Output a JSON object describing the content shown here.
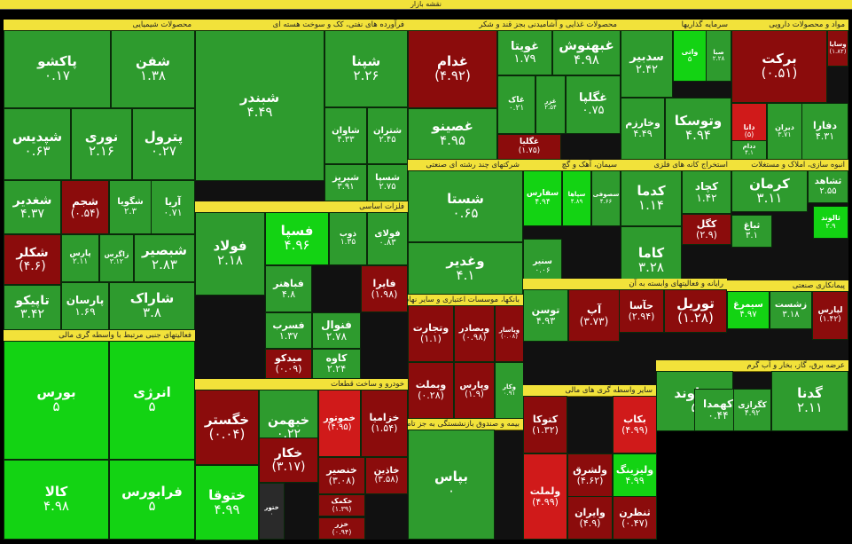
{
  "page": {
    "title": "نقشه بازار"
  },
  "colors": {
    "dark_green": "#1d7a1d",
    "green": "#2e9b2e",
    "bright_green": "#13d313",
    "light_green": "#22c022",
    "dark_red": "#8b0c0c",
    "red": "#d01a1a",
    "bright_red": "#ff2222",
    "neutral": "#2a2a2a",
    "header": "#f2e23a"
  },
  "sectors": [
    {
      "id": "chemical",
      "label": "محصولات شیمیایی",
      "tiles": [
        {
          "name": "پاکشو",
          "value": "۰.۱۷",
          "tone": "green"
        },
        {
          "name": "شفن",
          "value": "۱.۳۸",
          "tone": "green"
        },
        {
          "name": "شپدیس",
          "value": "۰.۶۳",
          "tone": "green"
        },
        {
          "name": "نوری",
          "value": "۲.۱۶",
          "tone": "green"
        },
        {
          "name": "پترول",
          "value": "۰.۲۷",
          "tone": "green"
        },
        {
          "name": "شغدیر",
          "value": "۴.۳۷",
          "tone": "green"
        },
        {
          "name": "شجم",
          "value": "(۰.۵۴)",
          "tone": "dark_red"
        },
        {
          "name": "شگویا",
          "value": "۲.۳",
          "tone": "green"
        },
        {
          "name": "آریا",
          "value": "۰.۷۱",
          "tone": "green"
        },
        {
          "name": "شکلر",
          "value": "(۴.۶)",
          "tone": "dark_red"
        },
        {
          "name": "پارس",
          "value": "۲.۱۱",
          "tone": "green"
        },
        {
          "name": "زاگرس",
          "value": "۳.۱۲",
          "tone": "green"
        },
        {
          "name": "شبصیر",
          "value": "۲.۸۳",
          "tone": "green"
        },
        {
          "name": "تاپیکو",
          "value": "۳.۴۲",
          "tone": "green"
        },
        {
          "name": "پارسان",
          "value": "۱.۶۹",
          "tone": "green"
        },
        {
          "name": "شاراک",
          "value": "۳.۸",
          "tone": "green"
        }
      ]
    },
    {
      "id": "petroleum",
      "label": "فرآورده های نفتی، کک و سوخت هسته ای",
      "tiles": [
        {
          "name": "شبندر",
          "value": "۴.۴۹",
          "tone": "green"
        },
        {
          "name": "شپنا",
          "value": "۲.۲۶",
          "tone": "green"
        },
        {
          "name": "شاوان",
          "value": "۴.۳۳",
          "tone": "green"
        },
        {
          "name": "شتران",
          "value": "۲.۴۵",
          "tone": "green"
        },
        {
          "name": "شبریز",
          "value": "۳.۹۱",
          "tone": "green"
        },
        {
          "name": "شسپا",
          "value": "۲.۷۵",
          "tone": "green"
        }
      ]
    },
    {
      "id": "food",
      "label": "محصولات غذایی و آشامیدنی بجز قند و شکر",
      "tiles": [
        {
          "name": "غدام",
          "value": "(۴.۹۲)",
          "tone": "dark_red"
        },
        {
          "name": "غویتا",
          "value": "۱.۷۹",
          "tone": "green"
        },
        {
          "name": "غبهنوش",
          "value": "۴.۹۸",
          "tone": "green"
        },
        {
          "name": "غاک",
          "value": "۰.۲۱",
          "tone": "green"
        },
        {
          "name": "غزر",
          "value": "۲.۵۴",
          "tone": "green"
        },
        {
          "name": "غگلپا",
          "value": "۰.۷۵",
          "tone": "green"
        },
        {
          "name": "غصینو",
          "value": "۴.۹۵",
          "tone": "green"
        },
        {
          "name": "غگلیا",
          "value": "(۱.۷۵)",
          "tone": "dark_red"
        }
      ]
    },
    {
      "id": "investment",
      "label": "سرمایه گذاریها",
      "tiles": [
        {
          "name": "سدبیر",
          "value": "۲.۴۲",
          "tone": "green"
        },
        {
          "name": "واتی",
          "value": "۵",
          "tone": "bright_green"
        },
        {
          "name": "صبا",
          "value": "۲.۲۸",
          "tone": "green"
        },
        {
          "name": "وخارزم",
          "value": "۴.۴۹",
          "tone": "green"
        },
        {
          "name": "وتوسکا",
          "value": "۴.۹۴",
          "tone": "green"
        }
      ]
    },
    {
      "id": "pharma",
      "label": "مواد و محصولات دارویی",
      "tiles": [
        {
          "name": "وسایا",
          "value": "(۱.۸۲)",
          "tone": "dark_red"
        },
        {
          "name": "برکت",
          "value": "(۰.۵۱)",
          "tone": "dark_red"
        },
        {
          "name": "دانا",
          "value": "(۵)",
          "tone": "red"
        },
        {
          "name": "دیران",
          "value": "۳.۷۱",
          "tone": "green"
        },
        {
          "name": "دفارا",
          "value": "۴.۳۱",
          "tone": "green"
        },
        {
          "name": "ددام",
          "value": "۴.۱",
          "tone": "green"
        }
      ]
    },
    {
      "id": "multi",
      "label": "شرکتهای چند رشته ای صنعتی",
      "tiles": [
        {
          "name": "شستا",
          "value": "۰.۶۵",
          "tone": "green"
        },
        {
          "name": "وغدیر",
          "value": "۴.۱",
          "tone": "green"
        }
      ]
    },
    {
      "id": "cement",
      "label": "سیمان، آهک و گچ",
      "tiles": [
        {
          "name": "سفارس",
          "value": "۴.۹۴",
          "tone": "bright_green"
        },
        {
          "name": "سپاها",
          "value": "۴.۸۹",
          "tone": "bright_green"
        },
        {
          "name": "سصوفی",
          "value": "۴.۶۶",
          "tone": "green"
        },
        {
          "name": "سنیر",
          "value": "۰.۰۶",
          "tone": "green"
        }
      ]
    },
    {
      "id": "mining",
      "label": "استخراج کانه های فلزی",
      "tiles": [
        {
          "name": "کدما",
          "value": "۱.۱۴",
          "tone": "green"
        },
        {
          "name": "کچاد",
          "value": "۱.۴۲",
          "tone": "green"
        },
        {
          "name": "کگل",
          "value": "(۲.۹)",
          "tone": "dark_red"
        },
        {
          "name": "کاما",
          "value": "۳.۲۸",
          "tone": "green"
        }
      ]
    },
    {
      "id": "realestate",
      "label": "انبوه سازی، املاک و مستغلات",
      "tiles": [
        {
          "name": "ثشاهد",
          "value": "۲.۵۵",
          "tone": "green"
        },
        {
          "name": "کرمان",
          "value": "۳.۱۱",
          "tone": "green"
        },
        {
          "name": "ثالوند",
          "value": "۲.۹",
          "tone": "bright_green"
        },
        {
          "name": "ثباغ",
          "value": "۳.۱",
          "tone": "green"
        }
      ]
    },
    {
      "id": "basemetals",
      "label": "فلزات اساسی",
      "tiles": [
        {
          "name": "فولاد",
          "value": "۲.۱۸",
          "tone": "green"
        },
        {
          "name": "فسپا",
          "value": "۴.۹۶",
          "tone": "bright_green"
        },
        {
          "name": "ذوب",
          "value": "۱.۳۵",
          "tone": "green"
        },
        {
          "name": "فولای",
          "value": "۰.۸۳",
          "tone": "green"
        },
        {
          "name": "فباهنر",
          "value": "۴.۸",
          "tone": "green"
        },
        {
          "name": "فایرا",
          "value": "(۱.۹۸)",
          "tone": "dark_red"
        },
        {
          "name": "فسرب",
          "value": "۱.۳۷",
          "tone": "green"
        },
        {
          "name": "فنوال",
          "value": "۲.۷۸",
          "tone": "green"
        },
        {
          "name": "میدکو",
          "value": "(۰.۰۹)",
          "tone": "dark_red"
        },
        {
          "name": "کاوه",
          "value": "۲.۲۴",
          "tone": "green"
        }
      ]
    },
    {
      "id": "financial",
      "label": "فعالیتهای جنبی مرتبط با واسطه گری مالی",
      "tiles": [
        {
          "name": "بورس",
          "value": "۵",
          "tone": "bright_green"
        },
        {
          "name": "انرژی",
          "value": "۵",
          "tone": "bright_green"
        },
        {
          "name": "کالا",
          "value": "۴.۹۸",
          "tone": "bright_green"
        },
        {
          "name": "فرابورس",
          "value": "۵",
          "tone": "bright_green"
        }
      ]
    },
    {
      "id": "auto",
      "label": "خودرو و ساخت قطعات",
      "tiles": [
        {
          "name": "خگستر",
          "value": "(۰.۰۴)",
          "tone": "dark_red"
        },
        {
          "name": "خبهمن",
          "value": "۰.۲۲",
          "tone": "green"
        },
        {
          "name": "خموتور",
          "value": "(۴.۹۵)",
          "tone": "red"
        },
        {
          "name": "خزامیا",
          "value": "(۱.۵۴)",
          "tone": "dark_red"
        },
        {
          "name": "ختوقا",
          "value": "۴.۹۹",
          "tone": "bright_green"
        },
        {
          "name": "ختور",
          "value": "۰",
          "tone": "neutral"
        },
        {
          "name": "خکار",
          "value": "(۳.۱۷)",
          "tone": "dark_red"
        },
        {
          "name": "خنصیر",
          "value": "(۳.۰۸)",
          "tone": "dark_red"
        },
        {
          "name": "خاذین",
          "value": "(۳.۵۸)",
          "tone": "dark_red"
        },
        {
          "name": "خکمک",
          "value": "(۱.۳۹)",
          "tone": "dark_red"
        },
        {
          "name": "خزر",
          "value": "(۰.۹۴)",
          "tone": "dark_red"
        }
      ]
    },
    {
      "id": "banks",
      "label": "بانکها، موسسات اعتباری و سایر نهادهای پولی",
      "tiles": [
        {
          "name": "وتجارت",
          "value": "(۱.۱)",
          "tone": "dark_red"
        },
        {
          "name": "وبصادر",
          "value": "(۰.۹۸)",
          "tone": "dark_red"
        },
        {
          "name": "وپاسار",
          "value": "(۰.۰۸)",
          "tone": "dark_red"
        },
        {
          "name": "وبملت",
          "value": "(۰.۲۸)",
          "tone": "dark_red"
        },
        {
          "name": "وپارس",
          "value": "(۱.۹)",
          "tone": "dark_red"
        },
        {
          "name": "وکار",
          "value": "۰.۹۱",
          "tone": "green"
        }
      ]
    },
    {
      "id": "insurance",
      "label": "بیمه و صندوق بازنشستگی به جز تامین اجتماعی",
      "tiles": [
        {
          "name": "بپاس",
          "value": "۰",
          "tone": "green"
        }
      ]
    },
    {
      "id": "telecom",
      "label": "رایانه و فعالیتهای وابسته به آن",
      "tiles": [
        {
          "name": "توسن",
          "value": "۴.۹۳",
          "tone": "green"
        },
        {
          "name": "آپ",
          "value": "(۳.۷۳)",
          "tone": "dark_red"
        },
        {
          "name": "حآسا",
          "value": "(۲.۹۴)",
          "tone": "dark_red"
        },
        {
          "name": "توریل",
          "value": "(۱.۲۸)",
          "tone": "dark_red"
        }
      ]
    },
    {
      "id": "engineering",
      "label": "پیمانکاری صنعتی",
      "tiles": [
        {
          "name": "سیمرغ",
          "value": "۴.۹۷",
          "tone": "bright_green"
        },
        {
          "name": "زشست",
          "value": "۳.۱۸",
          "tone": "green"
        },
        {
          "name": "لپارس",
          "value": "(۱.۴۲)",
          "tone": "dark_red"
        }
      ]
    },
    {
      "id": "utilities",
      "label": "عرضه برق، گاز، بخار و آب گرم",
      "tiles": [
        {
          "name": "دماوند",
          "value": "۵",
          "tone": "green"
        },
        {
          "name": "گدنا",
          "value": "۲.۱۱",
          "tone": "green"
        },
        {
          "name": "کهمدا",
          "value": "۰.۴۴",
          "tone": "green"
        },
        {
          "name": "کگرازی",
          "value": "۴.۹۲",
          "tone": "green"
        }
      ]
    },
    {
      "id": "misc",
      "label": "سایر واسطه گری های مالی",
      "tiles": [
        {
          "name": "کتوکا",
          "value": "(۱.۳۲)",
          "tone": "dark_red"
        },
        {
          "name": "ولملت",
          "value": "(۴.۹۹)",
          "tone": "red"
        },
        {
          "name": "ولشرق",
          "value": "(۴.۶۲)",
          "tone": "dark_red"
        },
        {
          "name": "وایران",
          "value": "(۴.۹)",
          "tone": "dark_red"
        },
        {
          "name": "بکاب",
          "value": "(۴.۹۹)",
          "tone": "red"
        },
        {
          "name": "ثنظرن",
          "value": "(۰.۴۷)",
          "tone": "dark_red"
        },
        {
          "name": "ولیزینگ",
          "value": "۴.۹۹",
          "tone": "bright_green"
        }
      ]
    }
  ]
}
